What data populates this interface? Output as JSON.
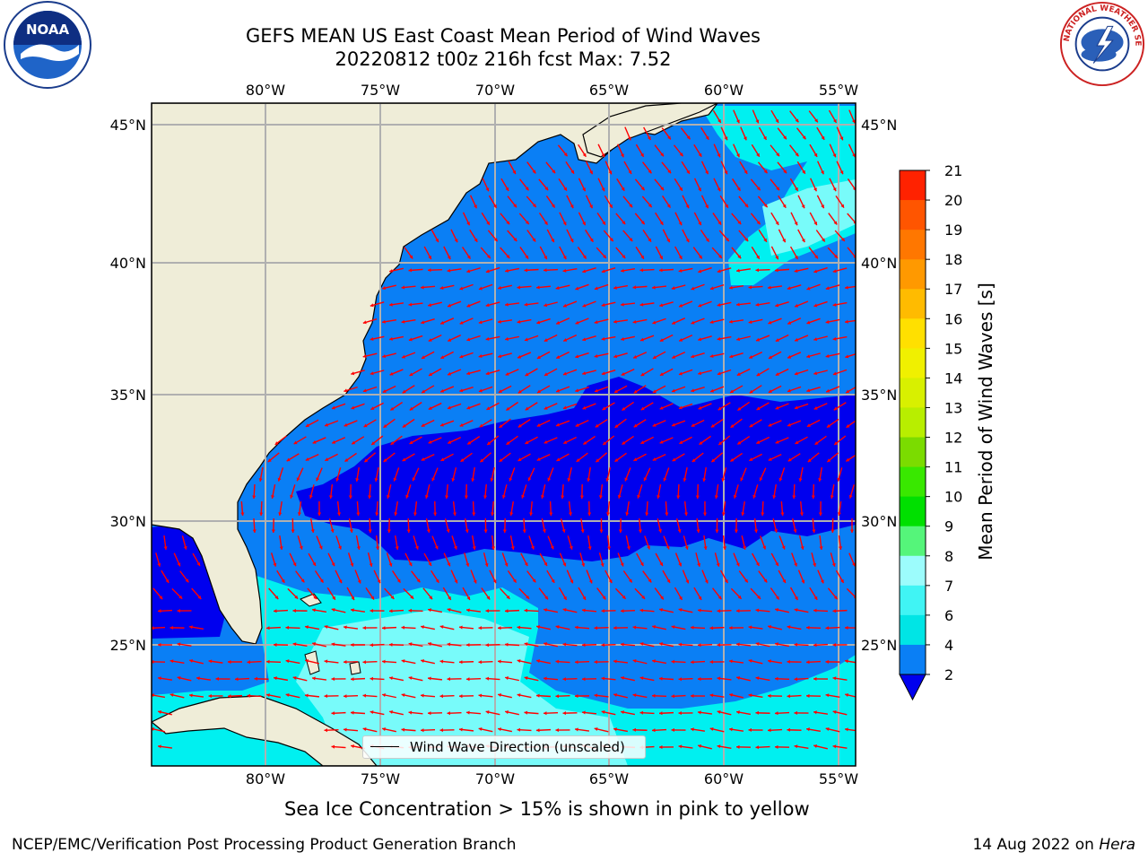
{
  "header": {
    "title_line1": "GEFS MEAN US East Coast Mean Period of Wind Waves",
    "title_line2": "20220812 t00z 216h fcst   Max: 7.52"
  },
  "logos": {
    "left": {
      "icon": "noaa-logo",
      "text": "NOAA"
    },
    "right": {
      "icon": "nws-logo",
      "text": "NATIONAL WEATHER SERVICE"
    }
  },
  "map": {
    "lon_ticks_top": [
      "80°W",
      "75°W",
      "70°W",
      "65°W",
      "60°W",
      "55°W"
    ],
    "lon_ticks_bottom": [
      "80°W",
      "75°W",
      "70°W",
      "65°W",
      "60°W",
      "55°W"
    ],
    "lat_ticks_left": [
      "45°N",
      "40°N",
      "35°N",
      "30°N",
      "25°N"
    ],
    "lat_ticks_right": [
      "45°N",
      "40°N",
      "35°N",
      "30°N",
      "25°N"
    ],
    "colors": {
      "land": "#efedd8",
      "deep_blue": "#0000ee",
      "mid_blue": "#0a7ff5",
      "cyan": "#00f0f0",
      "light_cyan": "#78fbfa",
      "arrow": "#ff0000",
      "grid": "#b0b0b0"
    },
    "legend_label": "Wind Wave Direction (unscaled)"
  },
  "colorbar": {
    "label": "Mean Period of Wind Waves [s]",
    "ticks": [
      "2",
      "4",
      "6",
      "7",
      "8",
      "9",
      "10",
      "11",
      "12",
      "13",
      "14",
      "15",
      "16",
      "17",
      "18",
      "19",
      "20",
      "21"
    ],
    "colors": [
      "#0a7ff5",
      "#00e5e5",
      "#40f4f4",
      "#9cfcfc",
      "#55f57a",
      "#00e000",
      "#39e800",
      "#7bdc00",
      "#b8ee00",
      "#d8f000",
      "#f0f000",
      "#ffe000",
      "#ffbb00",
      "#ff9900",
      "#ff7700",
      "#ff5500",
      "#ff2200"
    ]
  },
  "caption": "Sea Ice Concentration > 15% is shown in pink to yellow",
  "footer": {
    "left": "NCEP/EMC/Verification Post Processing Product Generation Branch",
    "right_prefix": "14 Aug 2022 on ",
    "right_italic": "Hera"
  }
}
